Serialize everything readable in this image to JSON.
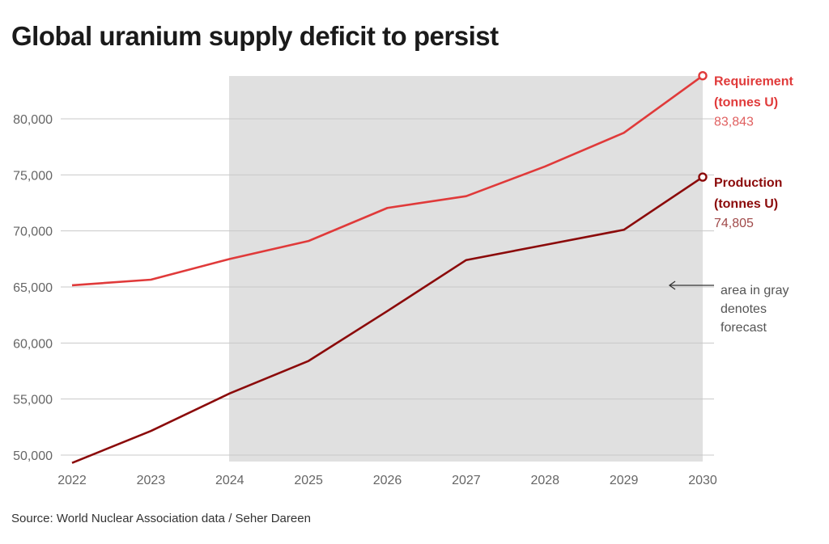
{
  "title": "Global uranium supply deficit to persist",
  "source": "Source: World Nuclear Association data / Seher Dareen",
  "colors": {
    "requirement": "#e03a3a",
    "production": "#8b0a0a",
    "requirement_value": "#e06060",
    "production_value": "#a04a4a",
    "forecast_shade": "#e0e0e0",
    "grid": "#c8c8c8"
  },
  "chart_data": {
    "type": "line",
    "title": "Global uranium supply deficit to persist",
    "xlabel": "",
    "ylabel": "",
    "x": [
      2022,
      2023,
      2024,
      2025,
      2026,
      2027,
      2028,
      2029,
      2030
    ],
    "x_tick_labels": [
      "2022",
      "2023",
      "2024",
      "2025",
      "2026",
      "2027",
      "2028",
      "2029",
      "2030"
    ],
    "y_ticks": [
      50000,
      55000,
      60000,
      65000,
      70000,
      75000,
      80000
    ],
    "y_tick_labels": [
      "50,000",
      "55,000",
      "60,000",
      "65,000",
      "70,000",
      "75,000",
      "80,000"
    ],
    "ylim": [
      49000,
      84000
    ],
    "xlim": [
      2022,
      2030
    ],
    "grid": true,
    "forecast_range": [
      2024,
      2030
    ],
    "series": [
      {
        "name": "Requirement",
        "label_line1": "Requirement",
        "label_line2": "(tonnes U)",
        "end_label": "83,843",
        "values": [
          65150,
          65650,
          67500,
          69100,
          72050,
          73100,
          75750,
          78750,
          83843
        ]
      },
      {
        "name": "Production",
        "label_line1": "Production",
        "label_line2": "(tonnes U)",
        "end_label": "74,805",
        "values": [
          49300,
          52150,
          55500,
          58400,
          62850,
          67400,
          68750,
          70100,
          74805
        ]
      }
    ],
    "annotation": {
      "lines": [
        "area in gray",
        "denotes",
        "forecast"
      ]
    }
  }
}
